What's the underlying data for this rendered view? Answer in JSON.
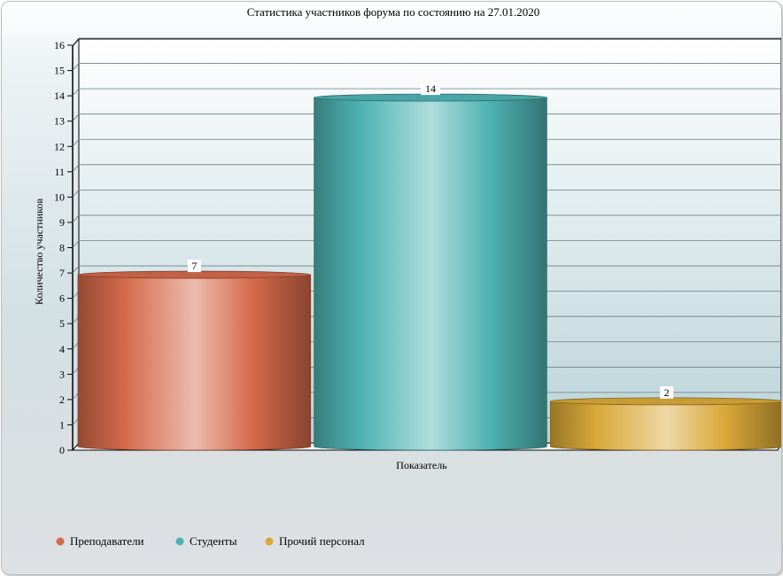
{
  "chart_data": {
    "type": "bar",
    "title": "Статистика участников форума по состоянию на 27.01.2020",
    "xlabel": "Показатель",
    "ylabel": "Количество участников",
    "ylim": [
      0,
      16
    ],
    "yticks": [
      0,
      1,
      2,
      3,
      4,
      5,
      6,
      7,
      8,
      9,
      10,
      11,
      12,
      13,
      14,
      15,
      16
    ],
    "grid": true,
    "legend_position": "bottom-left",
    "series": [
      {
        "name": "Преподаватели",
        "values": [
          7
        ],
        "color": "#d4694a"
      },
      {
        "name": "Студенты",
        "values": [
          14
        ],
        "color": "#4fb3b3"
      },
      {
        "name": "Прочий персонал",
        "values": [
          2
        ],
        "color": "#d9a838"
      }
    ],
    "data_labels": [
      "7",
      "14",
      "2"
    ]
  }
}
